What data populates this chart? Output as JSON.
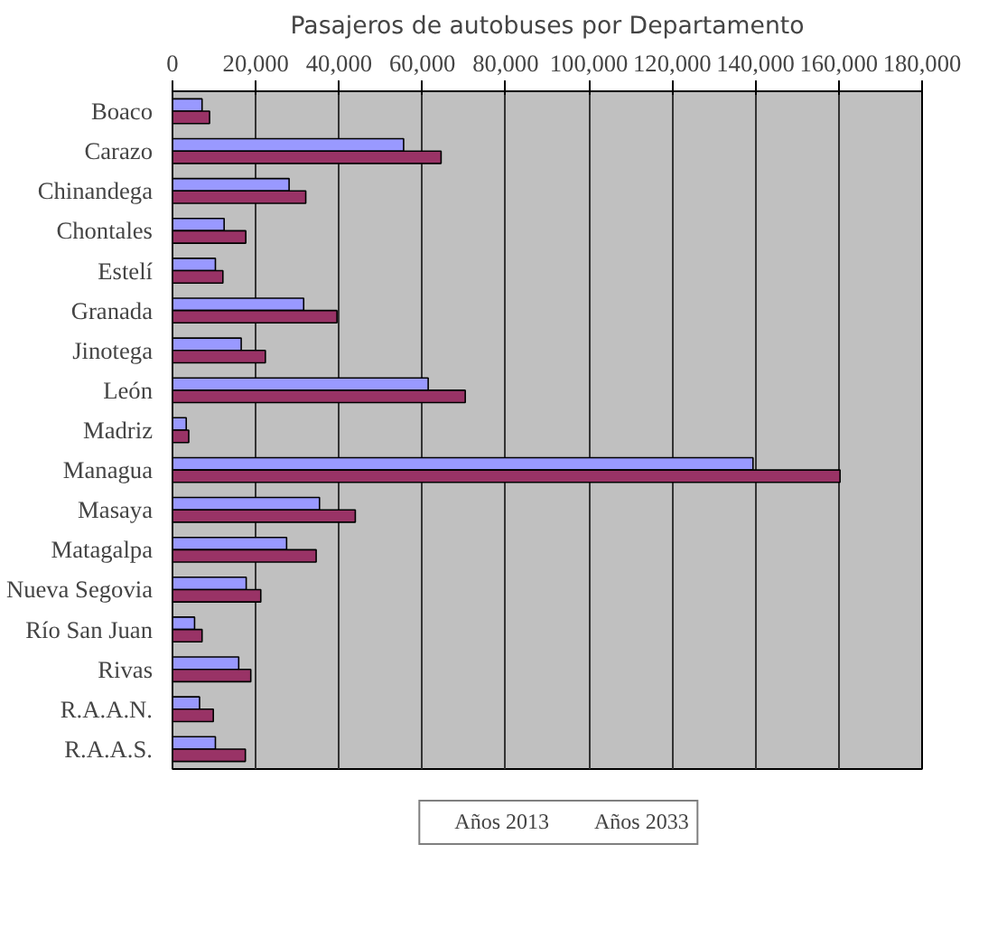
{
  "chart_data": {
    "type": "bar",
    "orientation": "horizontal",
    "title": "Pasajeros de autobuses por Departamento",
    "categories": [
      "Boaco",
      "Carazo",
      "Chinandega",
      "Chontales",
      "Estelí",
      "Granada",
      "Jinotega",
      "León",
      "Madriz",
      "Managua",
      "Masaya",
      "Matagalpa",
      "Nueva Segovia",
      "Río San Juan",
      "Rivas",
      "R.A.A.N.",
      "R.A.A.S."
    ],
    "series": [
      {
        "name": "Años 2013",
        "color": "#9999ff",
        "values": [
          7100,
          55500,
          28000,
          12400,
          10300,
          31500,
          16500,
          61400,
          3300,
          139400,
          35300,
          27400,
          17700,
          5300,
          15900,
          6500,
          10300
        ]
      },
      {
        "name": "Años 2033",
        "color": "#993366",
        "values": [
          8900,
          64500,
          32000,
          17600,
          12100,
          39500,
          22300,
          70300,
          3900,
          160300,
          43900,
          34500,
          21200,
          7100,
          18800,
          9800,
          17500
        ]
      }
    ],
    "xlim": [
      0,
      180000
    ],
    "xticks": [
      0,
      {
        "value": 20000,
        "label": "20,000"
      },
      {
        "value": 40000,
        "label": "40,000"
      },
      {
        "value": 60000,
        "label": "60,000"
      },
      {
        "value": 80000,
        "label": "80,000"
      },
      {
        "value": 100000,
        "label": "100,000"
      },
      {
        "value": 120000,
        "label": "120,000"
      },
      {
        "value": 140000,
        "label": "140,000"
      },
      {
        "value": 160000,
        "label": "160,000"
      },
      {
        "value": 180000,
        "label": "180,000"
      }
    ],
    "grid": "x",
    "legend": "bottom"
  }
}
